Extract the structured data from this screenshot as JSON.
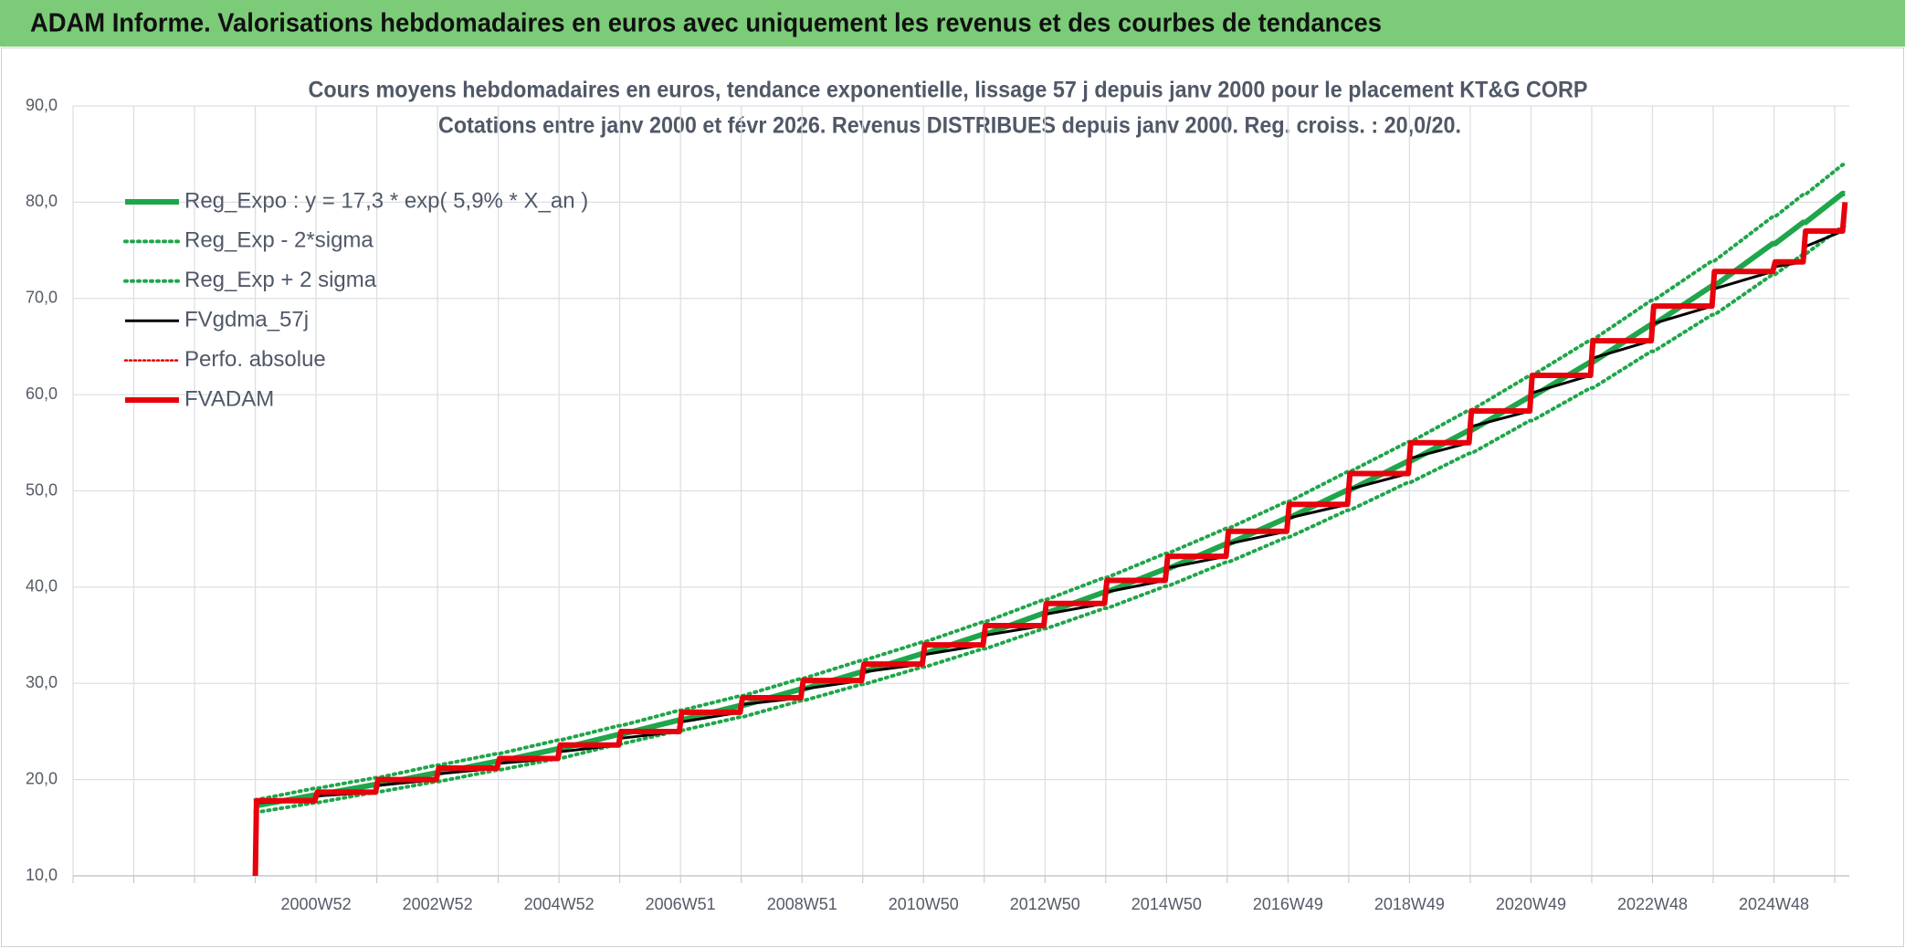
{
  "header": {
    "title": "ADAM Informe. Valorisations hebdomadaires en euros avec uniquement les revenus et des courbes de tendances"
  },
  "chart_data": {
    "type": "line",
    "title": "Cours moyens hebdomadaires en euros, tendance exponentielle, lissage 57 j depuis janv 2000 pour le placement KT&G CORP",
    "subtitle": "Cotations entre janv 2000 et févr 2026. Revenus DISTRIBUES depuis janv 2000. Reg. croiss. : 20,0/20.",
    "x": [
      2000,
      2000.02,
      2000.98,
      2001.02,
      2001.98,
      2002.02,
      2002.98,
      2003.02,
      2003.98,
      2004.02,
      2004.98,
      2005.02,
      2005.98,
      2006.02,
      2006.98,
      2007.02,
      2007.98,
      2008.02,
      2008.98,
      2009.02,
      2009.98,
      2010.02,
      2010.98,
      2011.02,
      2011.98,
      2012.02,
      2012.98,
      2013.02,
      2013.98,
      2014.02,
      2014.98,
      2015.02,
      2015.98,
      2016.02,
      2016.98,
      2017.02,
      2017.98,
      2018.02,
      2018.98,
      2019.02,
      2019.98,
      2020.02,
      2020.98,
      2021.02,
      2021.98,
      2022.02,
      2022.98,
      2023.02,
      2023.98,
      2024.02,
      2024.98,
      2025.02,
      2025.48,
      2025.52,
      2026.13,
      2026.17
    ],
    "xlim": [
      1997,
      2026.24
    ],
    "xticks": [
      {
        "value": 2001,
        "label": "2000W52"
      },
      {
        "value": 2003,
        "label": "2002W52"
      },
      {
        "value": 2005,
        "label": "2004W52"
      },
      {
        "value": 2007,
        "label": "2006W51"
      },
      {
        "value": 2009,
        "label": "2008W51"
      },
      {
        "value": 2011,
        "label": "2010W50"
      },
      {
        "value": 2013,
        "label": "2012W50"
      },
      {
        "value": 2015,
        "label": "2014W50"
      },
      {
        "value": 2017,
        "label": "2016W49"
      },
      {
        "value": 2019,
        "label": "2018W49"
      },
      {
        "value": 2021,
        "label": "2020W49"
      },
      {
        "value": 2023,
        "label": "2022W48"
      },
      {
        "value": 2025,
        "label": "2024W48"
      }
    ],
    "ylim": [
      10,
      90
    ],
    "yticks": [
      {
        "value": 10,
        "label": "10,0"
      },
      {
        "value": 20,
        "label": "20,0"
      },
      {
        "value": 30,
        "label": "30,0"
      },
      {
        "value": 40,
        "label": "40,0"
      },
      {
        "value": 50,
        "label": "50,0"
      },
      {
        "value": 60,
        "label": "60,0"
      },
      {
        "value": 70,
        "label": "70,0"
      },
      {
        "value": 80,
        "label": "80,0"
      },
      {
        "value": 90,
        "label": "90,0"
      }
    ],
    "grid": true,
    "legend": "upper left",
    "series": [
      {
        "name": "Reg_Expo : y = 17,3 * exp( 5,9% *  X_an )",
        "color": "#1fa64a",
        "width": 6,
        "dash": "none",
        "values": [
          17.3,
          17.3,
          18.4,
          18.4,
          19.5,
          19.5,
          20.7,
          20.7,
          21.9,
          21.9,
          23.2,
          23.2,
          24.7,
          24.7,
          26.2,
          26.2,
          27.7,
          27.7,
          29.4,
          29.4,
          31.2,
          31.2,
          33.1,
          33.1,
          35.1,
          35.1,
          37.3,
          37.3,
          39.5,
          39.5,
          41.9,
          41.9,
          44.5,
          44.5,
          47.2,
          47.2,
          50.1,
          50.1,
          53.1,
          53.1,
          56.3,
          56.3,
          59.8,
          59.8,
          63.4,
          63.4,
          67.3,
          67.3,
          71.3,
          71.3,
          75.7,
          75.7,
          77.9,
          77.9,
          80.9,
          80.9
        ]
      },
      {
        "name": "Reg_Exp - 2*sigma",
        "color": "#1fa64a",
        "width": 4,
        "dash": "2 5",
        "values": [
          16.6,
          16.6,
          17.6,
          17.6,
          18.7,
          18.7,
          19.8,
          19.8,
          21.0,
          21.0,
          22.2,
          22.2,
          23.7,
          23.7,
          25.1,
          25.1,
          26.5,
          26.5,
          28.2,
          28.2,
          29.9,
          29.9,
          31.7,
          31.7,
          33.6,
          33.6,
          35.7,
          35.7,
          37.8,
          37.8,
          40.1,
          40.1,
          42.6,
          42.6,
          45.2,
          45.2,
          48.0,
          48.0,
          50.9,
          50.9,
          53.9,
          53.9,
          57.3,
          57.3,
          60.7,
          60.7,
          64.5,
          64.5,
          68.3,
          68.3,
          72.5,
          72.5,
          74.6,
          74.6,
          77.5,
          77.5
        ]
      },
      {
        "name": "Reg_Exp + 2 sigma",
        "color": "#1fa64a",
        "width": 4,
        "dash": "2 5",
        "values": [
          17.9,
          17.9,
          19.1,
          19.1,
          20.2,
          20.2,
          21.5,
          21.5,
          22.7,
          22.7,
          24.1,
          24.1,
          25.6,
          25.6,
          27.2,
          27.2,
          28.7,
          28.7,
          30.5,
          30.5,
          32.4,
          32.4,
          34.3,
          34.3,
          36.4,
          36.4,
          38.7,
          38.7,
          41.0,
          41.0,
          43.5,
          43.5,
          46.1,
          46.1,
          48.9,
          48.9,
          52.0,
          52.0,
          55.1,
          55.1,
          58.4,
          58.4,
          62.0,
          62.0,
          65.7,
          65.7,
          69.8,
          69.8,
          73.9,
          73.9,
          78.5,
          78.5,
          80.8,
          80.8,
          83.9,
          83.9
        ]
      },
      {
        "name": "FVgdma_57j",
        "color": "#000000",
        "width": 3,
        "dash": "none",
        "values": [
          17.5,
          17.6,
          17.8,
          18.3,
          18.7,
          19.4,
          20.0,
          20.6,
          21.2,
          21.7,
          22.2,
          22.9,
          23.6,
          24.3,
          25.0,
          26.0,
          27.0,
          27.8,
          28.5,
          29.4,
          30.3,
          31.2,
          32.0,
          33.0,
          34.0,
          35.0,
          36.0,
          37.2,
          38.3,
          39.5,
          40.7,
          42.0,
          43.2,
          44.5,
          45.8,
          47.2,
          48.6,
          50.2,
          51.8,
          53.4,
          55.0,
          56.7,
          58.3,
          60.2,
          62.0,
          63.8,
          65.6,
          67.4,
          69.2,
          71.0,
          72.8,
          73.3,
          73.8,
          75.4,
          77.0,
          78.5
        ]
      },
      {
        "name": "Perfo. absolue",
        "color": "#e00000",
        "width": 2.5,
        "dash": "2 3",
        "values": [
          null,
          null,
          null,
          null,
          null,
          null,
          null,
          null,
          null,
          null,
          null,
          null,
          null,
          null,
          null,
          null,
          null,
          null,
          null,
          null,
          null,
          null,
          null,
          null,
          null,
          null,
          null,
          null,
          null,
          null,
          null,
          null,
          null,
          null,
          null,
          null,
          null,
          null,
          null,
          null,
          null,
          null,
          null,
          null,
          null,
          null,
          null,
          null,
          null,
          null,
          null,
          null,
          null,
          null,
          null,
          null
        ]
      },
      {
        "name": "FVADAM",
        "color": "#e8000b",
        "width": 6,
        "dash": "none",
        "values": [
          10,
          17.8,
          17.8,
          18.7,
          18.7,
          20.0,
          20.0,
          21.2,
          21.2,
          22.2,
          22.2,
          23.6,
          23.6,
          25.0,
          25.0,
          27.0,
          27.0,
          28.5,
          28.5,
          30.3,
          30.3,
          32.0,
          32.0,
          34.0,
          34.0,
          36.0,
          36.0,
          38.3,
          38.3,
          40.7,
          40.7,
          43.2,
          43.2,
          45.8,
          45.8,
          48.6,
          48.6,
          51.8,
          51.8,
          55.0,
          55.0,
          58.3,
          58.3,
          62.0,
          62.0,
          65.6,
          65.6,
          69.2,
          69.2,
          72.8,
          72.8,
          73.8,
          73.8,
          77.0,
          77.0,
          80.0
        ]
      }
    ]
  }
}
